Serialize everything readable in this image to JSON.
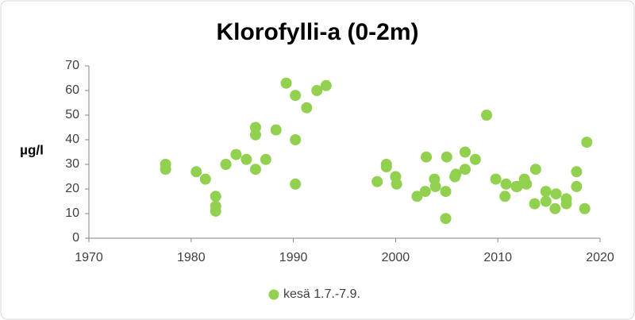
{
  "chart_data": {
    "type": "scatter",
    "title": "Klorofylli-a (0-2m)",
    "y_label": "µg/l",
    "xlim": [
      1970,
      2020
    ],
    "xticks": [
      1970,
      1980,
      1990,
      2000,
      2010,
      2020
    ],
    "ylim": [
      0,
      70
    ],
    "yticks": [
      0,
      10,
      20,
      30,
      40,
      50,
      60,
      70
    ],
    "legend_position": "bottom",
    "series": [
      {
        "name": "kesä 1.7.-7.9.",
        "color": "#92d050",
        "x": [
          1977.5,
          1977.5,
          1980.5,
          1981.4,
          1982.4,
          1982.4,
          1982.4,
          1983.4,
          1984.4,
          1985.4,
          1986.3,
          1986.3,
          1986.3,
          1987.3,
          1988.3,
          1989.3,
          1990.2,
          1990.2,
          1990.2,
          1991.3,
          1992.3,
          1993.2,
          1998.2,
          1999.1,
          1999.1,
          2000.0,
          2000.1,
          2002.1,
          2002.9,
          2003.0,
          2003.8,
          2003.9,
          2004.9,
          2005.0,
          2004.9,
          2005.8,
          2005.9,
          2006.8,
          2006.8,
          2007.8,
          2008.9,
          2009.8,
          2010.8,
          2010.7,
          2011.8,
          2011.9,
          2012.6,
          2012.8,
          2013.7,
          2013.6,
          2014.7,
          2014.7,
          2015.7,
          2015.6,
          2016.7,
          2016.7,
          2017.7,
          2017.7,
          2018.5,
          2018.7
        ],
        "y": [
          30,
          28,
          27,
          24,
          17,
          13,
          11,
          30,
          34,
          32,
          45,
          42,
          28,
          32,
          44,
          63,
          58,
          40,
          22,
          53,
          60,
          62,
          23,
          30,
          29,
          25,
          22,
          17,
          19,
          33,
          24,
          21,
          19,
          33,
          8,
          25,
          26,
          35,
          28,
          32,
          50,
          24,
          22,
          17,
          21,
          21,
          24,
          22,
          28,
          14,
          19,
          15,
          18,
          12,
          16,
          14,
          27,
          21,
          12,
          39
        ]
      }
    ]
  }
}
